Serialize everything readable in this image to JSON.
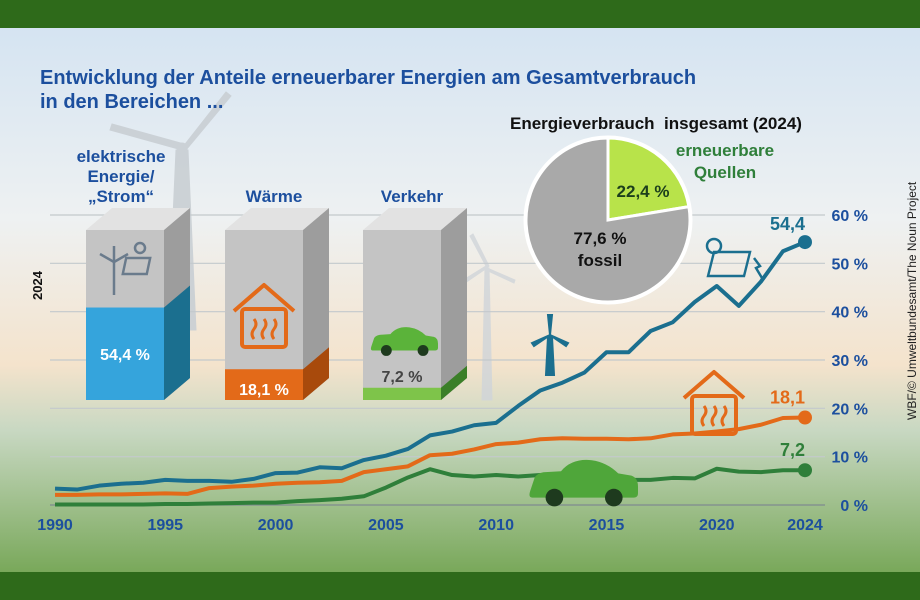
{
  "title_line1": "Entwicklung der Anteile erneuerbarer Energien am Gesamtverbrauch",
  "title_line2": "in den Bereichen ...",
  "credit": "WBF/© Umweltbundesamt/The Noun Project",
  "colors": {
    "frame": "#2e6a1a",
    "strom": "#1b6f8f",
    "waerme": "#e36a19",
    "verkehr": "#2f7f3a",
    "title": "#1c4f9e",
    "pie_green": "#b8e34a",
    "pie_grey": "#a9a9a9"
  },
  "chart_data": [
    {
      "type": "line",
      "title": "Entwicklung der Anteile erneuerbarer Energien am Gesamtverbrauch in den Bereichen ...",
      "x": [
        1990,
        1991,
        1992,
        1993,
        1994,
        1995,
        1996,
        1997,
        1998,
        1999,
        2000,
        2001,
        2002,
        2003,
        2004,
        2005,
        2006,
        2007,
        2008,
        2009,
        2010,
        2011,
        2012,
        2013,
        2014,
        2015,
        2016,
        2017,
        2018,
        2019,
        2020,
        2021,
        2022,
        2023,
        2024
      ],
      "x_ticks": [
        "1990",
        "1995",
        "2000",
        "2005",
        "2010",
        "2015",
        "2020",
        "2024"
      ],
      "y_ticks": [
        "0 %",
        "10 %",
        "20 %",
        "30 %",
        "40 %",
        "50 %",
        "60 %"
      ],
      "ylim": [
        0,
        60
      ],
      "grid": true,
      "series": [
        {
          "key": "strom",
          "values": [
            3.4,
            3.2,
            4.0,
            4.4,
            4.6,
            5.2,
            5.0,
            5.0,
            4.8,
            5.4,
            6.6,
            6.7,
            7.8,
            7.6,
            9.3,
            10.2,
            11.6,
            14.4,
            15.2,
            16.5,
            17.0,
            20.5,
            23.7,
            25.3,
            27.4,
            31.6,
            31.6,
            36.0,
            37.8,
            42.0,
            45.3,
            41.2,
            46.2,
            52.5,
            54.4
          ],
          "end_label": "54,4"
        },
        {
          "key": "waerme",
          "values": [
            2.1,
            2.1,
            2.2,
            2.2,
            2.3,
            2.4,
            2.3,
            3.5,
            3.8,
            4.0,
            4.4,
            4.6,
            4.7,
            5.0,
            6.8,
            7.4,
            8.0,
            10.3,
            10.6,
            11.5,
            12.6,
            12.9,
            13.6,
            13.8,
            13.7,
            13.7,
            13.6,
            13.8,
            14.6,
            14.8,
            15.2,
            15.7,
            16.6,
            18.0,
            18.1
          ],
          "end_label": "18,1"
        },
        {
          "key": "verkehr",
          "values": [
            0.1,
            0.1,
            0.1,
            0.1,
            0.1,
            0.2,
            0.2,
            0.3,
            0.4,
            0.5,
            0.5,
            0.8,
            1.0,
            1.3,
            1.8,
            3.6,
            5.7,
            7.4,
            6.2,
            5.9,
            6.2,
            5.9,
            6.2,
            5.8,
            5.6,
            5.2,
            5.2,
            5.2,
            5.6,
            5.5,
            7.5,
            6.9,
            6.8,
            7.2,
            7.2
          ],
          "end_label": "7,2"
        }
      ]
    },
    {
      "type": "bar",
      "category_label": "2024",
      "categories": [
        "elektrische Energie/ „Strom“",
        "Wärme",
        "Verkehr"
      ],
      "category_lines": [
        [
          "elektrische",
          "Energie/",
          "„Strom“"
        ],
        [
          "Wärme"
        ],
        [
          "Verkehr"
        ]
      ],
      "values": [
        54.4,
        18.1,
        7.2
      ],
      "value_labels": [
        "54,4 %",
        "18,1 %",
        "7,2 %"
      ],
      "ylim": [
        0,
        100
      ]
    },
    {
      "type": "pie",
      "title": "Energieverbrauch  insgesamt (2024)",
      "slices": [
        {
          "label": "erneuerbare Quellen",
          "label_lines": [
            "erneuerbare",
            "Quellen"
          ],
          "value": 22.4,
          "value_label": "22,4 %"
        },
        {
          "label": "fossil",
          "value": 77.6,
          "value_label": "77,6 %"
        }
      ]
    }
  ]
}
